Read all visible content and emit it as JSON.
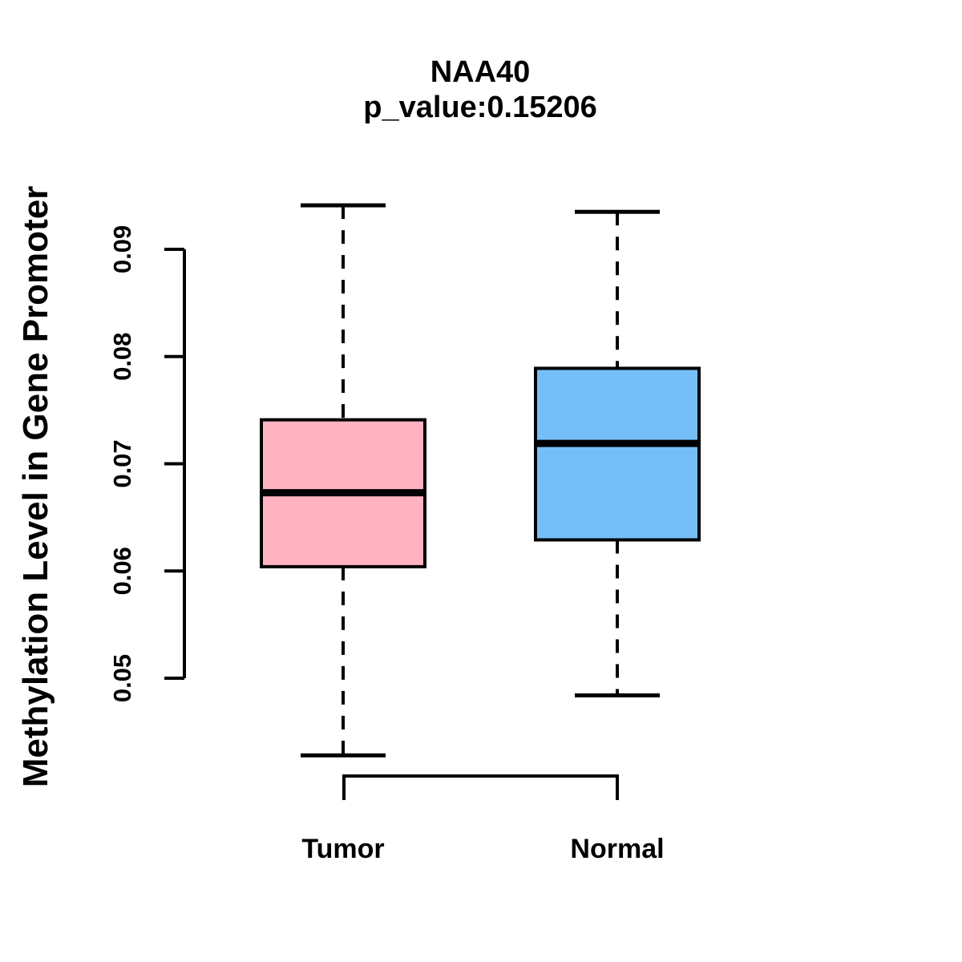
{
  "chart_data": {
    "type": "boxplot",
    "title": "NAA40",
    "subtitle": "p_value:0.15206",
    "ylabel": "Methylation Level in Gene Promoter",
    "xlabel": "",
    "categories": [
      "Tumor",
      "Normal"
    ],
    "yticks": [
      0.05,
      0.06,
      0.07,
      0.08,
      0.09
    ],
    "ytick_labels": [
      "0.05",
      "0.06",
      "0.07",
      "0.08",
      "0.09"
    ],
    "ylim": [
      0.0428,
      0.0941
    ],
    "grid": false,
    "legend": "none",
    "series": [
      {
        "name": "Tumor",
        "box_color": "#FFB3C1",
        "lower_whisker": 0.0428,
        "q1": 0.0604,
        "median": 0.0673,
        "q3": 0.0741,
        "upper_whisker": 0.0941
      },
      {
        "name": "Normal",
        "box_color": "#74BFF8",
        "lower_whisker": 0.0484,
        "q1": 0.0629,
        "median": 0.0719,
        "q3": 0.0789,
        "upper_whisker": 0.0935
      }
    ],
    "comparison_bracket": {
      "from": "Tumor",
      "to": "Normal"
    }
  },
  "colors": {
    "line": "#000000",
    "background": "#FFFFFF",
    "tumor_box": "#FFB3C1",
    "normal_box": "#74BFF8"
  }
}
